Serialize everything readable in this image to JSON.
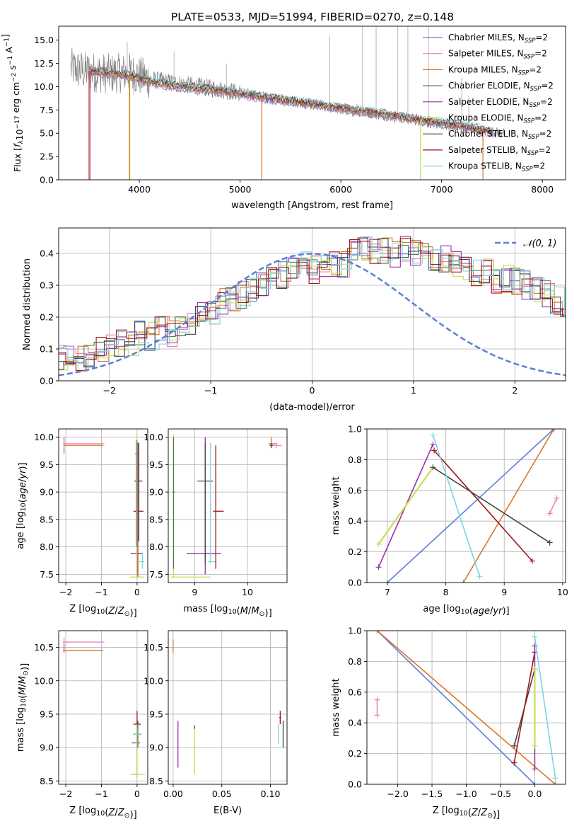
{
  "title": "PLATE=0533, MJD=51994, FIBERID=0270, z=0.148",
  "colors": {
    "blue": "#5b7fd6",
    "pink": "#e986b8",
    "orange": "#d9762a",
    "green": "#4c7d4c",
    "purple": "#9b2fae",
    "khaki": "#c8dd55",
    "dark": "#444444",
    "red": "#a01818",
    "cyan": "#7dd6dc",
    "gray": "#808080"
  },
  "chart_data": [
    {
      "id": "spectrum",
      "type": "line",
      "title": "PLATE=0533, MJD=51994, FIBERID=0270, z=0.148",
      "xlabel": "wavelength [Angstrom, rest frame]",
      "ylabel_parts": [
        "Flux [",
        "f",
        "λ",
        "10",
        "−17",
        " erg cm",
        "−2",
        " s",
        "−1",
        " A",
        "−1",
        "]"
      ],
      "xlim": [
        3200,
        8230
      ],
      "ylim": [
        0,
        16.5
      ],
      "xticks": [
        "4000",
        "5000",
        "6000",
        "7000",
        "8000"
      ],
      "yticks": [
        "0.0",
        "2.5",
        "5.0",
        "7.5",
        "10.0",
        "12.5",
        "15.0"
      ],
      "grid": false,
      "legend_position": "upper right",
      "legend": [
        {
          "name": "Chabrier MILES",
          "sub": "SSP",
          "tail": "=2",
          "color": "blue"
        },
        {
          "name": "Salpeter MILES",
          "sub": "SSP",
          "tail": "=2",
          "color": "pink"
        },
        {
          "name": "Kroupa MILES",
          "sub": "SSP",
          "tail": "=2",
          "color": "orange"
        },
        {
          "name": "Chabrier ELODIE",
          "sub": "SSP",
          "tail": "=2",
          "color": "green"
        },
        {
          "name": "Salpeter ELODIE",
          "sub": "SSP",
          "tail": "=2",
          "color": "purple"
        },
        {
          "name": "Kroupa ELODIE",
          "sub": "SSP",
          "tail": "=2",
          "color": "khaki"
        },
        {
          "name": "Chabrier STELIB",
          "sub": "SSP",
          "tail": "=2",
          "color": "dark"
        },
        {
          "name": "Salpeter STELIB",
          "sub": "SSP",
          "tail": "=2",
          "color": "red"
        },
        {
          "name": "Kroupa STELIB",
          "sub": "SSP",
          "tail": "=2",
          "color": "cyan"
        }
      ],
      "data_continuum": {
        "x": [
          3320,
          3500,
          3700,
          3900,
          4100,
          4400,
          4800,
          5200,
          5600,
          6000,
          6400,
          6800,
          7200,
          7600
        ],
        "y": [
          12.0,
          11.6,
          11.4,
          11.5,
          10.8,
          10.3,
          9.7,
          9.0,
          8.3,
          7.6,
          7.0,
          6.3,
          5.6,
          5.0
        ]
      },
      "model_continuum": {
        "x": [
          3500,
          3700,
          3900,
          4100,
          4400,
          4800,
          5200,
          5600,
          6000,
          6400,
          6800,
          7200,
          7500
        ],
        "y": [
          11.7,
          11.4,
          11.2,
          10.6,
          10.0,
          9.6,
          8.9,
          8.3,
          7.7,
          7.1,
          6.4,
          5.8,
          5.2
        ]
      },
      "drops": [
        {
          "x": 3500,
          "series": "orange"
        },
        {
          "x": 3510,
          "series": "purple"
        },
        {
          "x": 3900,
          "series": "khaki"
        },
        {
          "x": 3905,
          "series": "orange"
        },
        {
          "x": 5215,
          "series": "orange"
        },
        {
          "x": 6790,
          "series": "khaki"
        },
        {
          "x": 7410,
          "series": "orange"
        }
      ],
      "spikes": [
        {
          "x": 3880,
          "y": 14.8
        },
        {
          "x": 4345,
          "y": 13.8
        },
        {
          "x": 4865,
          "y": 12.5
        },
        {
          "x": 5890,
          "y": 15.5
        },
        {
          "x": 6215,
          "y": 16.5
        },
        {
          "x": 6350,
          "y": 16.5
        },
        {
          "x": 6565,
          "y": 16.5
        },
        {
          "x": 6665,
          "y": 16.5
        },
        {
          "x": 6870,
          "y": 16.5
        },
        {
          "x": 7200,
          "y": 11.0
        },
        {
          "x": 7270,
          "y": 9.0
        }
      ]
    },
    {
      "id": "residuals",
      "type": "line",
      "xlabel": "(data-model)/error",
      "ylabel": "Normed distribution",
      "xlim": [
        -2.5,
        2.5
      ],
      "ylim": [
        0,
        0.48
      ],
      "xticks": [
        "−2",
        "−1",
        "0",
        "1",
        "2"
      ],
      "yticks": [
        "0.0",
        "0.1",
        "0.2",
        "0.3",
        "0.4"
      ],
      "grid": true,
      "legend_position": "upper right",
      "legend_label": "𝒩(0, 1)",
      "bin_width": 0.1,
      "hist_base": [
        0.07,
        0.07,
        0.07,
        0.07,
        0.1,
        0.1,
        0.12,
        0.12,
        0.15,
        0.14,
        0.16,
        0.15,
        0.18,
        0.18,
        0.22,
        0.22,
        0.25,
        0.26,
        0.27,
        0.29,
        0.31,
        0.32,
        0.33,
        0.35,
        0.36,
        0.35,
        0.36,
        0.37,
        0.37,
        0.4,
        0.41,
        0.41,
        0.41,
        0.4,
        0.41,
        0.4,
        0.39,
        0.39,
        0.38,
        0.37,
        0.35,
        0.34,
        0.34,
        0.32,
        0.32,
        0.31,
        0.3,
        0.29,
        0.27,
        0.25,
        0.24,
        0.22,
        0.2,
        0.18,
        0.17,
        0.16,
        0.15,
        0.14,
        0.13,
        0.13,
        0.12,
        0.1,
        0.1,
        0.09,
        0.08,
        0.07,
        0.07,
        0.06,
        0.06,
        0.05,
        0.05,
        0.05,
        0.04,
        0.04,
        0.03,
        0.03,
        0.03,
        0.03,
        0.02,
        0.02
      ]
    },
    {
      "id": "age-vs-Z",
      "type": "scatter",
      "xlabel": "Z [log10(Z/Z⊙)]",
      "ylabel": "age [log10(age/yr)]",
      "xlim": [
        -2.2,
        0.3
      ],
      "ylim": [
        7.35,
        10.15
      ],
      "xticks": [
        "−2",
        "−1",
        "0"
      ],
      "yticks": [
        "7.5",
        "8.0",
        "8.5",
        "9.0",
        "9.5",
        "10.0"
      ],
      "grid": true,
      "points": [
        {
          "c": "orange",
          "x": -2.05,
          "y": 9.85,
          "xe": [
            -2.05,
            -0.95
          ],
          "ye": [
            9.7,
            10.0
          ]
        },
        {
          "c": "pink",
          "x": -2.05,
          "y": 9.88,
          "xe": [
            -2.08,
            -0.92
          ],
          "ye": [
            9.8,
            10.0
          ]
        },
        {
          "c": "green",
          "x": 0.0,
          "y": 9.5,
          "xe": [
            -0.01,
            0.01
          ],
          "ye": [
            7.45,
            9.95
          ]
        },
        {
          "c": "red",
          "x": 0.02,
          "y": 8.65,
          "xe": [
            -0.1,
            0.18
          ],
          "ye": [
            7.45,
            9.9
          ]
        },
        {
          "c": "dark",
          "x": 0.05,
          "y": 9.2,
          "xe": [
            -0.08,
            0.15
          ],
          "ye": [
            8.1,
            9.9
          ]
        },
        {
          "c": "purple",
          "x": 0.0,
          "y": 7.88,
          "xe": [
            -0.18,
            0.15
          ],
          "ye": [
            7.5,
            8.3
          ]
        },
        {
          "c": "cyan",
          "x": 0.15,
          "y": 7.73,
          "xe": [
            0.05,
            0.2
          ],
          "ye": [
            7.6,
            7.9
          ]
        },
        {
          "c": "khaki",
          "x": 0.0,
          "y": 7.45,
          "xe": [
            -0.2,
            0.2
          ],
          "ye": [
            7.42,
            10.05
          ]
        },
        {
          "c": "blue",
          "x": -0.02,
          "y": 9.7,
          "xe": [
            -0.05,
            0.02
          ],
          "ye": [
            8.0,
            9.95
          ]
        }
      ]
    },
    {
      "id": "age-vs-mass",
      "type": "scatter",
      "xlabel": "mass [log10(M/M⊙)]",
      "ylabel": "",
      "xlim": [
        8.5,
        10.75
      ],
      "ylim": [
        7.35,
        10.15
      ],
      "xticks": [
        "9",
        "10"
      ],
      "yticks": [
        "7.5",
        "8.0",
        "8.5",
        "9.0",
        "9.5",
        "10.0"
      ],
      "grid": true,
      "points": [
        {
          "c": "khaki",
          "x": 8.6,
          "y": 7.45,
          "xe": [
            8.55,
            9.3
          ],
          "ye": [
            7.45,
            10.05
          ]
        },
        {
          "c": "green",
          "x": 8.6,
          "y": 9.0,
          "xe": [
            8.58,
            8.62
          ],
          "ye": [
            7.6,
            10.0
          ]
        },
        {
          "c": "purple",
          "x": 9.2,
          "y": 7.88,
          "xe": [
            8.85,
            9.5
          ],
          "ye": [
            7.5,
            10.0
          ]
        },
        {
          "c": "dark",
          "x": 9.2,
          "y": 9.2,
          "xe": [
            9.05,
            9.35
          ],
          "ye": [
            7.7,
            9.9
          ]
        },
        {
          "c": "cyan",
          "x": 9.3,
          "y": 7.73,
          "xe": [
            9.25,
            9.4
          ],
          "ye": [
            7.7,
            9.9
          ]
        },
        {
          "c": "red",
          "x": 9.4,
          "y": 8.65,
          "xe": [
            9.35,
            9.55
          ],
          "ye": [
            7.6,
            9.85
          ]
        },
        {
          "c": "orange",
          "x": 10.45,
          "y": 9.88,
          "xe": [
            10.4,
            10.55
          ],
          "ye": [
            9.8,
            10.0
          ]
        },
        {
          "c": "pink",
          "x": 10.55,
          "y": 9.85,
          "xe": [
            10.45,
            10.65
          ],
          "ye": [
            9.8,
            9.9
          ]
        },
        {
          "c": "dark",
          "x": 10.45,
          "y": 9.85,
          "xe": [
            10.42,
            10.48
          ],
          "ye": [
            9.8,
            9.9
          ]
        }
      ]
    },
    {
      "id": "weight-vs-age",
      "type": "line",
      "xlabel": "age [log10(age/yr)]",
      "ylabel": "mass weight",
      "xlim": [
        6.65,
        10.05
      ],
      "ylim": [
        0,
        1
      ],
      "xticks": [
        "7",
        "8",
        "9",
        "10"
      ],
      "yticks": [
        "0.0",
        "0.2",
        "0.4",
        "0.6",
        "0.8",
        "1.0"
      ],
      "grid": true,
      "series": [
        {
          "c": "blue",
          "x": [
            7.0,
            9.85
          ],
          "y": [
            0.0,
            1.0
          ]
        },
        {
          "c": "orange",
          "x": [
            8.3,
            9.85
          ],
          "y": [
            0.0,
            1.0
          ]
        },
        {
          "c": "purple",
          "x": [
            6.85,
            7.78
          ],
          "y": [
            0.1,
            0.9
          ]
        },
        {
          "c": "khaki",
          "x": [
            6.85,
            7.78
          ],
          "y": [
            0.25,
            0.75
          ]
        },
        {
          "c": "dark",
          "x": [
            7.78,
            9.78
          ],
          "y": [
            0.75,
            0.26
          ]
        },
        {
          "c": "red",
          "x": [
            7.8,
            9.48
          ],
          "y": [
            0.86,
            0.14
          ]
        },
        {
          "c": "cyan",
          "x": [
            7.78,
            8.58
          ],
          "y": [
            0.96,
            0.04
          ]
        },
        {
          "c": "pink",
          "x": [
            9.78,
            9.9
          ],
          "y": [
            0.45,
            0.55
          ]
        }
      ]
    },
    {
      "id": "mass-vs-Z",
      "type": "scatter",
      "xlabel": "Z [log10(Z/Z⊙)]",
      "ylabel": "mass [log10(M/M⊙)]",
      "xlim": [
        -2.2,
        0.3
      ],
      "ylim": [
        8.45,
        10.75
      ],
      "xticks": [
        "−2",
        "−1",
        "0"
      ],
      "yticks": [
        "8.5",
        "9.0",
        "9.5",
        "10.0",
        "10.5"
      ],
      "grid": true,
      "points": [
        {
          "c": "pink",
          "x": -2.05,
          "y": 10.58,
          "xe": [
            -2.08,
            -0.92
          ],
          "ye": [
            10.45,
            10.65
          ]
        },
        {
          "c": "orange",
          "x": -2.05,
          "y": 10.45,
          "xe": [
            -2.08,
            -0.95
          ],
          "ye": [
            10.42,
            10.55
          ]
        },
        {
          "c": "red",
          "x": 0.0,
          "y": 9.35,
          "xe": [
            -0.1,
            0.1
          ],
          "ye": [
            9.15,
            9.55
          ]
        },
        {
          "c": "dark",
          "x": 0.02,
          "y": 9.2,
          "xe": [
            -0.1,
            0.12
          ],
          "ye": [
            9.0,
            9.4
          ]
        },
        {
          "c": "cyan",
          "x": 0.0,
          "y": 9.2,
          "xe": [
            -0.08,
            0.1
          ],
          "ye": [
            9.05,
            9.35
          ]
        },
        {
          "c": "purple",
          "x": 0.0,
          "y": 9.07,
          "xe": [
            -0.15,
            0.08
          ],
          "ye": [
            8.95,
            9.25
          ]
        },
        {
          "c": "green",
          "x": 0.0,
          "y": 8.6,
          "xe": [
            -0.15,
            0.12
          ],
          "ye": [
            8.55,
            9.3
          ]
        },
        {
          "c": "khaki",
          "x": 0.0,
          "y": 8.6,
          "xe": [
            -0.2,
            0.22
          ],
          "ye": [
            8.55,
            9.3
          ]
        }
      ]
    },
    {
      "id": "mass-vs-EBV",
      "type": "scatter",
      "xlabel": "E(B-V)",
      "ylabel": "",
      "xlim": [
        -0.005,
        0.117
      ],
      "ylim": [
        8.45,
        10.75
      ],
      "xticks": [
        "0.00",
        "0.05",
        "0.10"
      ],
      "yticks": [
        "8.5",
        "9.0",
        "9.5",
        "10.0",
        "10.5"
      ],
      "grid": true,
      "points": [
        {
          "c": "orange",
          "x": 0.0,
          "y": 10.5,
          "xe": [
            0.0,
            0.0
          ],
          "ye": [
            10.42,
            10.62
          ]
        },
        {
          "c": "purple",
          "x": 0.005,
          "y": 9.05,
          "xe": [
            0.005,
            0.005
          ],
          "ye": [
            8.7,
            9.4
          ]
        },
        {
          "c": "khaki",
          "x": 0.022,
          "y": 9.0,
          "xe": [
            0.022,
            0.022
          ],
          "ye": [
            8.6,
            9.32
          ]
        },
        {
          "c": "dark",
          "x": 0.022,
          "y": 9.3,
          "xe": [
            0.022,
            0.022
          ],
          "ye": [
            9.28,
            9.33
          ]
        },
        {
          "c": "red",
          "x": 0.11,
          "y": 9.45,
          "xe": [
            0.109,
            0.111
          ],
          "ye": [
            9.35,
            9.55
          ]
        },
        {
          "c": "cyan",
          "x": 0.108,
          "y": 9.2,
          "xe": [
            0.108,
            0.108
          ],
          "ye": [
            9.05,
            9.35
          ]
        },
        {
          "c": "dark",
          "x": 0.113,
          "y": 9.2,
          "xe": [
            0.113,
            0.113
          ],
          "ye": [
            9.0,
            9.4
          ]
        }
      ]
    },
    {
      "id": "weight-vs-Z",
      "type": "line",
      "xlabel": "Z [log10(Z/Z⊙)]",
      "ylabel": "mass weight",
      "xlim": [
        -2.45,
        0.45
      ],
      "ylim": [
        0,
        1
      ],
      "xticks": [
        "−2.0",
        "−1.5",
        "−1.0",
        "−0.5",
        "0.0"
      ],
      "yticks": [
        "0.0",
        "0.2",
        "0.4",
        "0.6",
        "0.8",
        "1.0"
      ],
      "grid": true,
      "series": [
        {
          "c": "blue",
          "x": [
            -2.3,
            0.0
          ],
          "y": [
            1.0,
            0.0
          ]
        },
        {
          "c": "orange",
          "x": [
            -2.3,
            0.3
          ],
          "y": [
            1.0,
            0.0
          ]
        },
        {
          "c": "dark",
          "x": [
            -0.3,
            0.0
          ],
          "y": [
            0.25,
            0.75
          ]
        },
        {
          "c": "red",
          "x": [
            -0.3,
            0.0
          ],
          "y": [
            0.14,
            0.86
          ]
        },
        {
          "c": "purple",
          "x": [
            0.0,
            0.0
          ],
          "y": [
            0.1,
            0.9
          ]
        },
        {
          "c": "khaki",
          "x": [
            0.0,
            0.0
          ],
          "y": [
            0.25,
            0.75
          ]
        },
        {
          "c": "cyan",
          "x": [
            0.0,
            0.3
          ],
          "y": [
            0.96,
            0.04
          ]
        },
        {
          "c": "pink",
          "x": [
            -2.3,
            -2.3
          ],
          "y": [
            0.45,
            0.55
          ]
        }
      ]
    }
  ]
}
